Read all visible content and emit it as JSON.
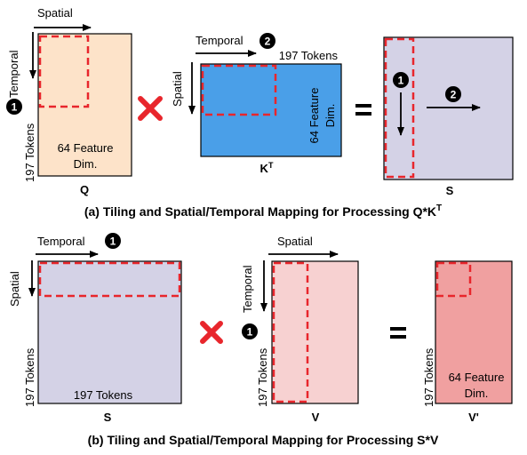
{
  "panel_a": {
    "caption": "(a) Tiling and Spatial/Temporal Mapping for Processing Q*K",
    "caption_sup": "T",
    "q": {
      "name": "Q",
      "top_arrow_label": "Spatial",
      "left_arrow_label": "Temporal",
      "step": "1",
      "side_label": "197 Tokens",
      "feature_line1": "64 Feature",
      "feature_line2": "Dim.",
      "fill": "#fde3c9"
    },
    "kt": {
      "name": "K",
      "name_sup": "T",
      "top_arrow_label": "Temporal",
      "step": "2",
      "left_arrow_label": "Spatial",
      "top_label": "197 Tokens",
      "feature_line1": "64 Feature",
      "feature_line2": "Dim.",
      "fill": "#4a9fe8"
    },
    "s": {
      "name": "S",
      "step_down": "1",
      "step_right": "2",
      "fill": "#d4d2e6"
    }
  },
  "panel_b": {
    "caption": "(b) Tiling and Spatial/Temporal Mapping for Processing S*V",
    "s": {
      "name": "S",
      "top_arrow_label": "Temporal",
      "step": "1",
      "left_arrow_label": "Spatial",
      "side_label": "197 Tokens",
      "bottom_label": "197 Tokens",
      "fill": "#d4d2e6"
    },
    "v": {
      "name": "V",
      "top_arrow_label": "Spatial",
      "left_arrow_label": "Temporal",
      "step": "1",
      "side_label": "197 Tokens",
      "fill": "#f7d1d1"
    },
    "vp": {
      "name": "V'",
      "side_label": "197 Tokens",
      "feature_line1": "64 Feature",
      "feature_line2": "Dim.",
      "fill": "#f0a0a0"
    }
  },
  "operators": {
    "times": "×",
    "equals": "="
  },
  "colors": {
    "dashed_tile": "#e8262c",
    "times_mark": "#e8262c",
    "border": "#000000"
  }
}
